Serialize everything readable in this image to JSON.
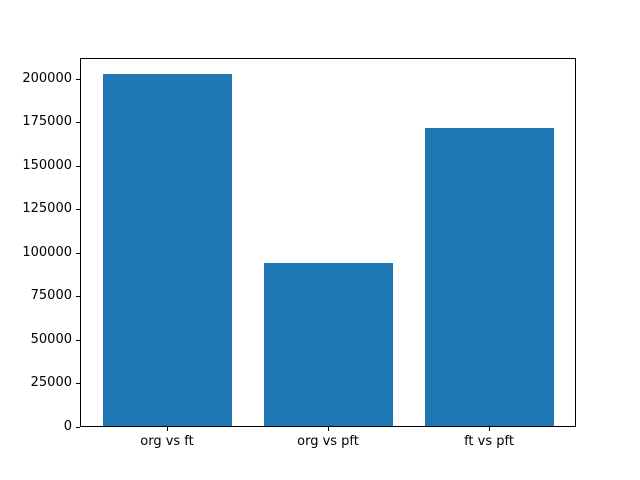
{
  "figure": {
    "background": "#ffffff",
    "text_color": "#000000",
    "spine_color": "#000000"
  },
  "chart_data": {
    "type": "bar",
    "title": "",
    "xlabel": "",
    "ylabel": "",
    "categories": [
      "org vs ft",
      "org vs pft",
      "ft vs pft"
    ],
    "values": [
      203000,
      94500,
      171500
    ],
    "yticks": [
      0,
      25000,
      50000,
      75000,
      100000,
      125000,
      150000,
      175000,
      200000
    ],
    "ylim": [
      0,
      212000
    ],
    "bar_color": "#1f77b4",
    "bar_width_fraction": 0.8,
    "grid": false,
    "legend": null
  }
}
